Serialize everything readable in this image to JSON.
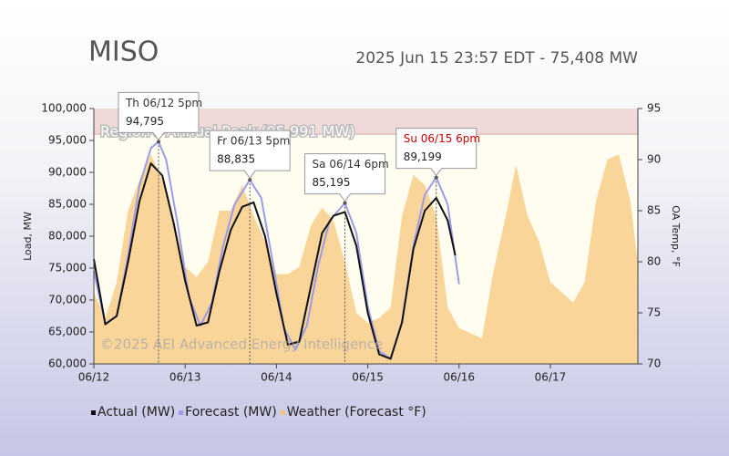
{
  "chart_data": {
    "type": "line",
    "title": "MISO",
    "subtitle": "2025 Jun 15 23:57 EDT - 75,408 MW",
    "y_label": "Load, MW",
    "y2_label": "OA Temp, °F",
    "watermark": "©2025 AEI Advanced Energy Intelligence",
    "peak_band": {
      "value": 95991,
      "label": "Region's Annual Peak (95,991 MW)",
      "color": "#e9c9cf"
    },
    "xlim": [
      0,
      143
    ],
    "xticks": [
      {
        "value": 0,
        "label": "06/12"
      },
      {
        "value": 24,
        "label": "06/13"
      },
      {
        "value": 48,
        "label": "06/14"
      },
      {
        "value": 72,
        "label": "06/15"
      },
      {
        "value": 96,
        "label": "06/16"
      },
      {
        "value": 120,
        "label": "06/17"
      }
    ],
    "ylim": [
      60000,
      100000
    ],
    "yticks": [
      {
        "value": 60000,
        "label": "60,000"
      },
      {
        "value": 65000,
        "label": "65,000"
      },
      {
        "value": 70000,
        "label": "70,000"
      },
      {
        "value": 75000,
        "label": "75,000"
      },
      {
        "value": 80000,
        "label": "80,000"
      },
      {
        "value": 85000,
        "label": "85,000"
      },
      {
        "value": 90000,
        "label": "90,000"
      },
      {
        "value": 95000,
        "label": "95,000"
      },
      {
        "value": 100000,
        "label": "100,000"
      }
    ],
    "y2lim": [
      70,
      95
    ],
    "y2ticks": [
      70,
      75,
      80,
      85,
      90,
      95
    ],
    "series": [
      {
        "name": "Weather (Forecast °F)",
        "color": "#f7c77e",
        "axis": "y2",
        "kind": "area",
        "x": [
          0,
          3,
          6,
          9,
          12,
          15,
          18,
          21,
          24,
          27,
          30,
          33,
          36,
          39,
          42,
          45,
          48,
          51,
          54,
          57,
          60,
          63,
          66,
          69,
          72,
          75,
          78,
          81,
          84,
          87,
          90,
          93,
          96,
          99,
          102,
          105,
          108,
          111,
          114,
          117,
          120,
          123,
          126,
          129,
          132,
          135,
          138,
          141,
          143
        ],
        "values": [
          77,
          74.5,
          78,
          85,
          88,
          90.5,
          88,
          84,
          79.5,
          78.5,
          80,
          85,
          85,
          87.5,
          84.5,
          82,
          78.8,
          78.8,
          79.5,
          83.5,
          85.3,
          84,
          80,
          75,
          74,
          74.5,
          75.5,
          84.5,
          88.5,
          87.5,
          84.5,
          75.5,
          73.5,
          73,
          72.5,
          79,
          84,
          89.5,
          84.5,
          82,
          78,
          77,
          76,
          78,
          86,
          90,
          90.5,
          86,
          80
        ]
      },
      {
        "name": "Forecast (MW)",
        "color": "#9b9be8",
        "kind": "line",
        "x": [
          0,
          3,
          6,
          9,
          12,
          15,
          17,
          19,
          22,
          25,
          28,
          31,
          34,
          37,
          41,
          44,
          47,
          50,
          53,
          56,
          59,
          62,
          66,
          69,
          72,
          75,
          78,
          81,
          84,
          87,
          90,
          93,
          96
        ],
        "values": [
          74500,
          66300,
          67500,
          77000,
          88000,
          93800,
          94795,
          92000,
          82000,
          70500,
          66000,
          69500,
          78500,
          85000,
          88835,
          86000,
          76000,
          65500,
          62200,
          66000,
          75500,
          82500,
          85195,
          80500,
          69000,
          62000,
          60800,
          66500,
          78500,
          86500,
          89199,
          85000,
          72500
        ]
      },
      {
        "name": "Actual (MW)",
        "color": "#111111",
        "kind": "line",
        "x": [
          0,
          3,
          6,
          9,
          12,
          15,
          18,
          21,
          24,
          27,
          30,
          33,
          36,
          39,
          42,
          45,
          48,
          51,
          54,
          57,
          60,
          63,
          66,
          69,
          72,
          75,
          78,
          81,
          84,
          87,
          90,
          93,
          95
        ],
        "values": [
          76400,
          66200,
          67500,
          76000,
          85500,
          91400,
          89500,
          82000,
          73000,
          66000,
          66500,
          74500,
          81000,
          84600,
          85300,
          80000,
          71000,
          63000,
          63500,
          72000,
          80500,
          83200,
          83800,
          78500,
          68000,
          61500,
          60800,
          66500,
          78000,
          84000,
          86000,
          82500,
          77000
        ]
      }
    ],
    "annotations": [
      {
        "label": "Th 06/12 5pm",
        "x": 17,
        "value": 94795,
        "value_label": "94,795",
        "color": "#333333"
      },
      {
        "label": "Fr 06/13 5pm",
        "x": 41,
        "value": 88835,
        "value_label": "88,835",
        "color": "#333333"
      },
      {
        "label": "Sa 06/14 6pm",
        "x": 66,
        "value": 85195,
        "value_label": "85,195",
        "color": "#333333"
      },
      {
        "label": "Su 06/15 6pm",
        "x": 90,
        "value": 89199,
        "value_label": "89,199",
        "color": "#cc0000"
      }
    ],
    "legend_order": [
      2,
      1,
      0
    ]
  }
}
